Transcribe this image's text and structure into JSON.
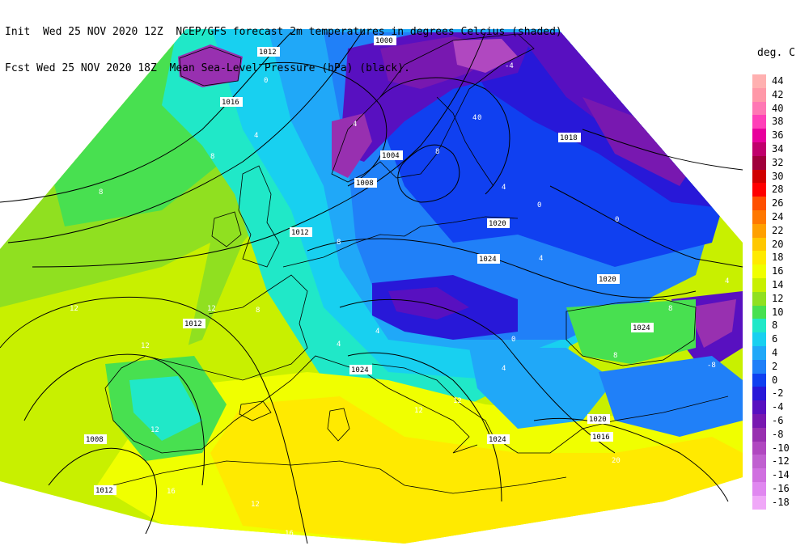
{
  "header": {
    "line1": "Init  Wed 25 NOV 2020 12Z  NCEP/GFS forecast 2m temperatures in degrees Celcius (shaded)",
    "line2": "Fcst Wed 25 NOV 2020 18Z  Mean Sea-Level Pressure (hPa) (black)."
  },
  "legend": {
    "title": "deg. C",
    "entries": [
      {
        "label": "44",
        "color": "#ffb0b0"
      },
      {
        "label": "42",
        "color": "#ff98a8"
      },
      {
        "label": "40",
        "color": "#ff78b4"
      },
      {
        "label": "38",
        "color": "#ff40b8"
      },
      {
        "label": "36",
        "color": "#e8009c"
      },
      {
        "label": "34",
        "color": "#c0006c"
      },
      {
        "label": "32",
        "color": "#a0003c"
      },
      {
        "label": "30",
        "color": "#d00000"
      },
      {
        "label": "28",
        "color": "#ff0000"
      },
      {
        "label": "26",
        "color": "#ff5000"
      },
      {
        "label": "24",
        "color": "#ff7800"
      },
      {
        "label": "22",
        "color": "#ffa000"
      },
      {
        "label": "20",
        "color": "#ffc800"
      },
      {
        "label": "18",
        "color": "#ffea00"
      },
      {
        "label": "16",
        "color": "#f0ff00"
      },
      {
        "label": "14",
        "color": "#c8f000"
      },
      {
        "label": "12",
        "color": "#90e020"
      },
      {
        "label": "10",
        "color": "#48e050"
      },
      {
        "label": "8",
        "color": "#20e8c8"
      },
      {
        "label": "6",
        "color": "#18d0f0"
      },
      {
        "label": "4",
        "color": "#20a8f8"
      },
      {
        "label": "2",
        "color": "#2080f8"
      },
      {
        "label": "0",
        "color": "#1040f0"
      },
      {
        "label": "-2",
        "color": "#2818d8"
      },
      {
        "label": "-4",
        "color": "#5810c0"
      },
      {
        "label": "-6",
        "color": "#7818b0"
      },
      {
        "label": "-8",
        "color": "#9830b0"
      },
      {
        "label": "-10",
        "color": "#b048c0"
      },
      {
        "label": "-12",
        "color": "#c060d0"
      },
      {
        "label": "-14",
        "color": "#d070e0"
      },
      {
        "label": "-16",
        "color": "#e088f0"
      },
      {
        "label": "-18",
        "color": "#f0a8f8"
      }
    ]
  },
  "isobar_labels": [
    "1012",
    "1000",
    "1016",
    "1004",
    "1008",
    "1012",
    "1020",
    "1024",
    "1020",
    "1018",
    "1024",
    "1012",
    "1024",
    "1020",
    "1016",
    "1008",
    "1012",
    "1024"
  ],
  "temp_labels": [
    "0",
    "4",
    "8",
    "8",
    "12",
    "12",
    "8",
    "4",
    "12",
    "16",
    "12",
    "16",
    "20",
    "12",
    "0",
    "4",
    "8",
    "4",
    "-4",
    "0",
    "4",
    "0",
    "4",
    "8",
    "12",
    "-8",
    "4",
    "8",
    "4",
    "0",
    "8",
    "4",
    "12"
  ]
}
